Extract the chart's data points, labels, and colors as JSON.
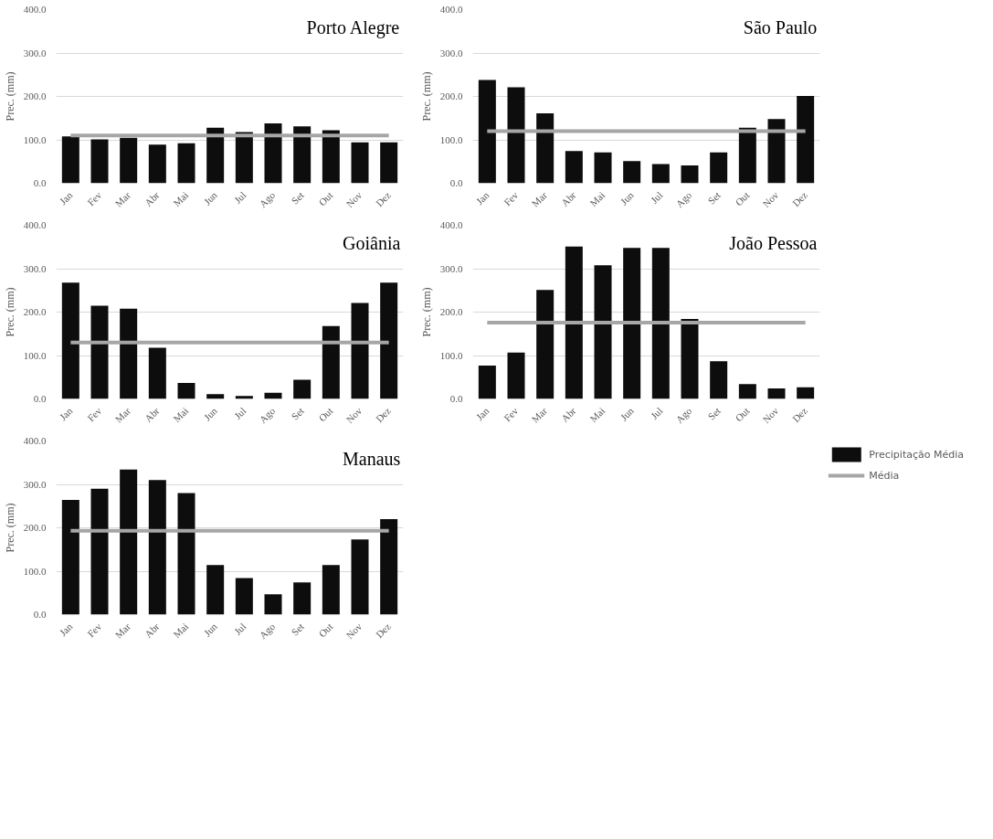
{
  "chart_data": [
    {
      "type": "bar",
      "title": "Porto Alegre",
      "ylabel": "Prec. (mm)",
      "categories": [
        "Jan",
        "Fev",
        "Mar",
        "Abr",
        "Mai",
        "Jun",
        "Jul",
        "Ago",
        "Set",
        "Out",
        "Nov",
        "Dez"
      ],
      "ylim": [
        0,
        400
      ],
      "yticks": [
        {
          "value": 0,
          "label": "0.0"
        },
        {
          "value": 100,
          "label": "100.0"
        },
        {
          "value": 200,
          "label": "200.0"
        },
        {
          "value": 300,
          "label": "300.0"
        },
        {
          "value": 400,
          "label": "400.0"
        }
      ],
      "grid": "y",
      "legend": false,
      "series": [
        {
          "color": "#0d0d0d",
          "values": [
            108,
            101,
            105,
            89,
            92,
            128,
            118,
            138,
            131,
            122,
            94,
            94
          ]
        },
        {
          "type": "line",
          "color": "#a6a6a6",
          "values": [
            110,
            110,
            110,
            110,
            110,
            110,
            110,
            110,
            110,
            110,
            110,
            110
          ]
        }
      ]
    },
    {
      "type": "bar",
      "title": "São Paulo",
      "ylabel": "Prec. (mm)",
      "categories": [
        "Jan",
        "Fev",
        "Mar",
        "Abr",
        "Mai",
        "Jun",
        "Jul",
        "Ago",
        "Set",
        "Out",
        "Nov",
        "Dez"
      ],
      "ylim": [
        0,
        400
      ],
      "yticks": [
        {
          "value": 0,
          "label": "0.0"
        },
        {
          "value": 100,
          "label": "100.0"
        },
        {
          "value": 200,
          "label": "200.0"
        },
        {
          "value": 300,
          "label": "300.0"
        },
        {
          "value": 400,
          "label": "400.0"
        }
      ],
      "grid": "y",
      "legend": false,
      "series": [
        {
          "color": "#0d0d0d",
          "values": [
            238,
            221,
            161,
            74,
            71,
            51,
            44,
            41,
            71,
            128,
            148,
            201
          ]
        },
        {
          "type": "line",
          "color": "#a6a6a6",
          "values": [
            120,
            120,
            120,
            120,
            120,
            120,
            120,
            120,
            120,
            120,
            120,
            120
          ]
        }
      ]
    },
    {
      "type": "bar",
      "title": "Goiânia",
      "ylabel": "Prec. (mm)",
      "categories": [
        "Jan",
        "Fev",
        "Mar",
        "Abr",
        "Mai",
        "Jun",
        "Jul",
        "Ago",
        "Set",
        "Out",
        "Nov",
        "Dez"
      ],
      "ylim": [
        0,
        400
      ],
      "yticks": [
        {
          "value": 0,
          "label": "0.0"
        },
        {
          "value": 100,
          "label": "100.0"
        },
        {
          "value": 200,
          "label": "200.0"
        },
        {
          "value": 300,
          "label": "300.0"
        },
        {
          "value": 400,
          "label": "400.0"
        }
      ],
      "grid": "y",
      "legend": false,
      "series": [
        {
          "color": "#0d0d0d",
          "values": [
            268,
            215,
            208,
            118,
            37,
            11,
            7,
            14,
            44,
            168,
            221,
            268
          ]
        },
        {
          "type": "line",
          "color": "#a6a6a6",
          "values": [
            130,
            130,
            130,
            130,
            130,
            130,
            130,
            130,
            130,
            130,
            130,
            130
          ]
        }
      ]
    },
    {
      "type": "bar",
      "title": "João Pessoa",
      "ylabel": "Prec. (mm)",
      "categories": [
        "Jan",
        "Fev",
        "Mar",
        "Abr",
        "Mai",
        "Jun",
        "Jul",
        "Ago",
        "Set",
        "Out",
        "Nov",
        "Dez"
      ],
      "ylim": [
        0,
        400
      ],
      "yticks": [
        {
          "value": 0,
          "label": "0.0"
        },
        {
          "value": 100,
          "label": "100.0"
        },
        {
          "value": 200,
          "label": "200.0"
        },
        {
          "value": 300,
          "label": "300.0"
        },
        {
          "value": 400,
          "label": "400.0"
        }
      ],
      "grid": "y",
      "legend": false,
      "series": [
        {
          "color": "#0d0d0d",
          "values": [
            77,
            107,
            251,
            351,
            308,
            348,
            348,
            184,
            87,
            34,
            24,
            27
          ]
        },
        {
          "type": "line",
          "color": "#a6a6a6",
          "values": [
            176,
            176,
            176,
            176,
            176,
            176,
            176,
            176,
            176,
            176,
            176,
            176
          ]
        }
      ]
    },
    {
      "type": "bar",
      "title": "Manaus",
      "ylabel": "Prec. (mm)",
      "categories": [
        "Jan",
        "Fev",
        "Mar",
        "Abr",
        "Mai",
        "Jun",
        "Jul",
        "Ago",
        "Set",
        "Out",
        "Nov",
        "Dez"
      ],
      "ylim": [
        0,
        400
      ],
      "yticks": [
        {
          "value": 0,
          "label": "0.0"
        },
        {
          "value": 100,
          "label": "100.0"
        },
        {
          "value": 200,
          "label": "200.0"
        },
        {
          "value": 300,
          "label": "300.0"
        },
        {
          "value": 400,
          "label": "400.0"
        }
      ],
      "grid": "y",
      "legend": "right",
      "series": [
        {
          "name": "Precipitação Média",
          "color": "#0d0d0d",
          "values": [
            264,
            290,
            334,
            310,
            280,
            114,
            84,
            47,
            74,
            114,
            173,
            220
          ]
        },
        {
          "type": "line",
          "name": "Média",
          "color": "#a6a6a6",
          "values": [
            193,
            193,
            193,
            193,
            193,
            193,
            193,
            193,
            193,
            193,
            193,
            193
          ]
        }
      ]
    }
  ]
}
